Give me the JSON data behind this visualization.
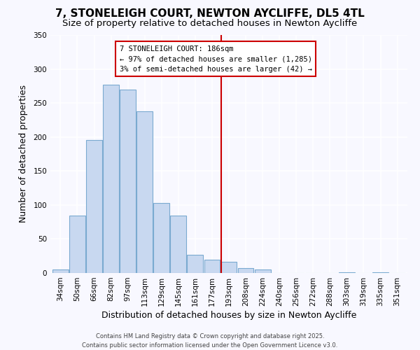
{
  "title": "7, STONELEIGH COURT, NEWTON AYCLIFFE, DL5 4TL",
  "subtitle": "Size of property relative to detached houses in Newton Aycliffe",
  "xlabel": "Distribution of detached houses by size in Newton Aycliffe",
  "ylabel": "Number of detached properties",
  "categories": [
    "34sqm",
    "50sqm",
    "66sqm",
    "82sqm",
    "97sqm",
    "113sqm",
    "129sqm",
    "145sqm",
    "161sqm",
    "177sqm",
    "193sqm",
    "208sqm",
    "224sqm",
    "240sqm",
    "256sqm",
    "272sqm",
    "288sqm",
    "303sqm",
    "319sqm",
    "335sqm",
    "351sqm"
  ],
  "values": [
    5,
    84,
    196,
    277,
    270,
    238,
    103,
    84,
    27,
    20,
    16,
    7,
    5,
    0,
    0,
    0,
    0,
    1,
    0,
    1,
    0
  ],
  "bar_color": "#c8d8f0",
  "bar_edge_color": "#7aaad0",
  "vline_color": "#cc0000",
  "annotation_title": "7 STONELEIGH COURT: 186sqm",
  "annotation_line1": "← 97% of detached houses are smaller (1,285)",
  "annotation_line2": "3% of semi-detached houses are larger (42) →",
  "annotation_box_color": "#cc0000",
  "ylim": [
    0,
    350
  ],
  "yticks": [
    0,
    50,
    100,
    150,
    200,
    250,
    300,
    350
  ],
  "footer1": "Contains HM Land Registry data © Crown copyright and database right 2025.",
  "footer2": "Contains public sector information licensed under the Open Government Licence v3.0.",
  "bg_color": "#f8f8ff",
  "title_fontsize": 11,
  "subtitle_fontsize": 9.5,
  "label_fontsize": 9,
  "tick_fontsize": 7.5,
  "annotation_fontsize": 7.5,
  "footer_fontsize": 6
}
